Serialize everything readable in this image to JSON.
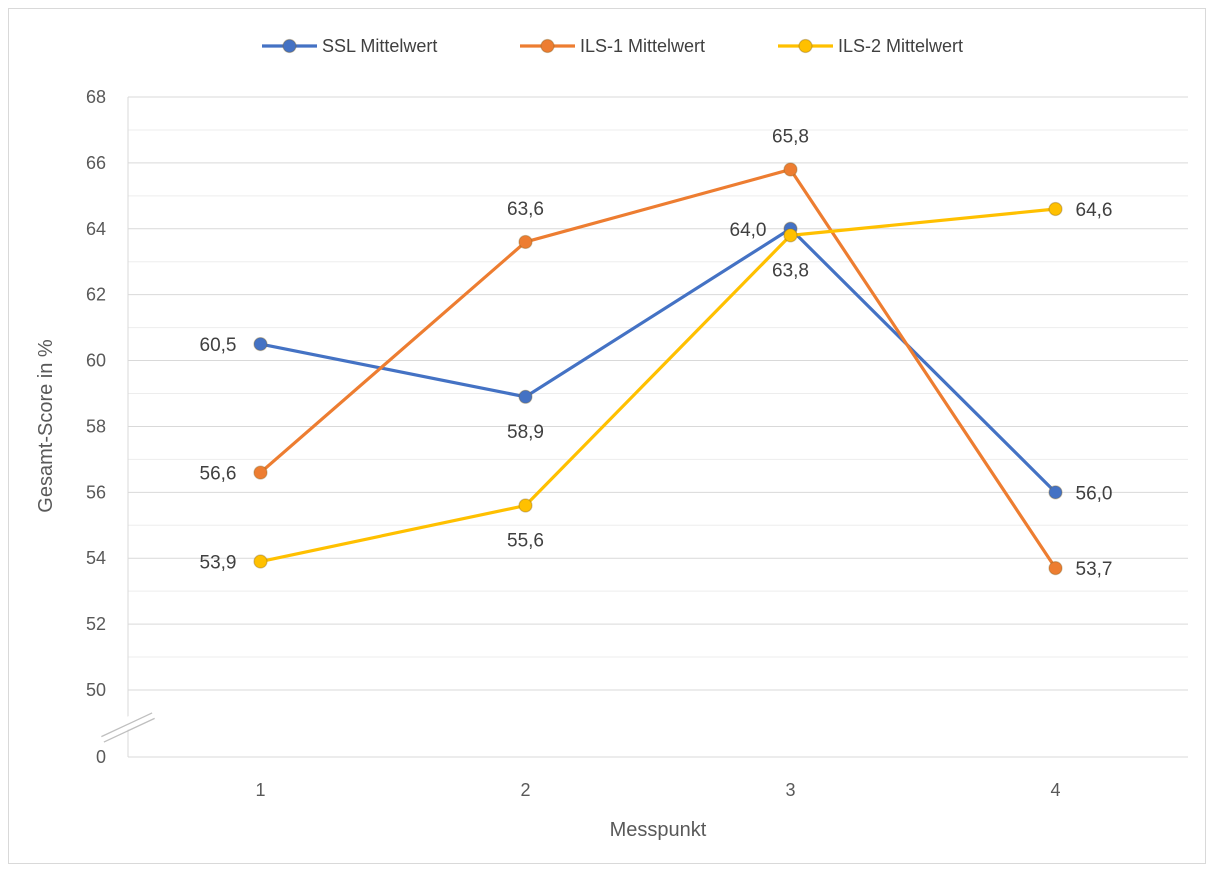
{
  "chart_data": {
    "type": "line",
    "title": "",
    "xlabel": "Messpunkt",
    "ylabel": "Gesamt-Score in %",
    "categories": [
      "1",
      "2",
      "3",
      "4"
    ],
    "ylim": [
      50,
      68
    ],
    "y_ticks": [
      "0",
      "50",
      "52",
      "54",
      "56",
      "58",
      "60",
      "62",
      "64",
      "66",
      "68"
    ],
    "axis_break": true,
    "grid": true,
    "legend_position": "top",
    "series": [
      {
        "name": "SSL Mittelwert",
        "color": "#4472c4",
        "values": [
          60.5,
          58.9,
          64.0,
          56.0
        ],
        "labels": [
          "60,5",
          "58,9",
          "64,0",
          "56,0"
        ]
      },
      {
        "name": "ILS-1 Mittelwert",
        "color": "#ed7d31",
        "values": [
          56.6,
          63.6,
          65.8,
          53.7
        ],
        "labels": [
          "56,6",
          "63,6",
          "65,8",
          "53,7"
        ]
      },
      {
        "name": "ILS-2 Mittelwert",
        "color": "#ffc000",
        "values": [
          53.9,
          55.6,
          63.8,
          64.6
        ],
        "labels": [
          "53,9",
          "55,6",
          "63,8",
          "64,6"
        ]
      }
    ]
  }
}
